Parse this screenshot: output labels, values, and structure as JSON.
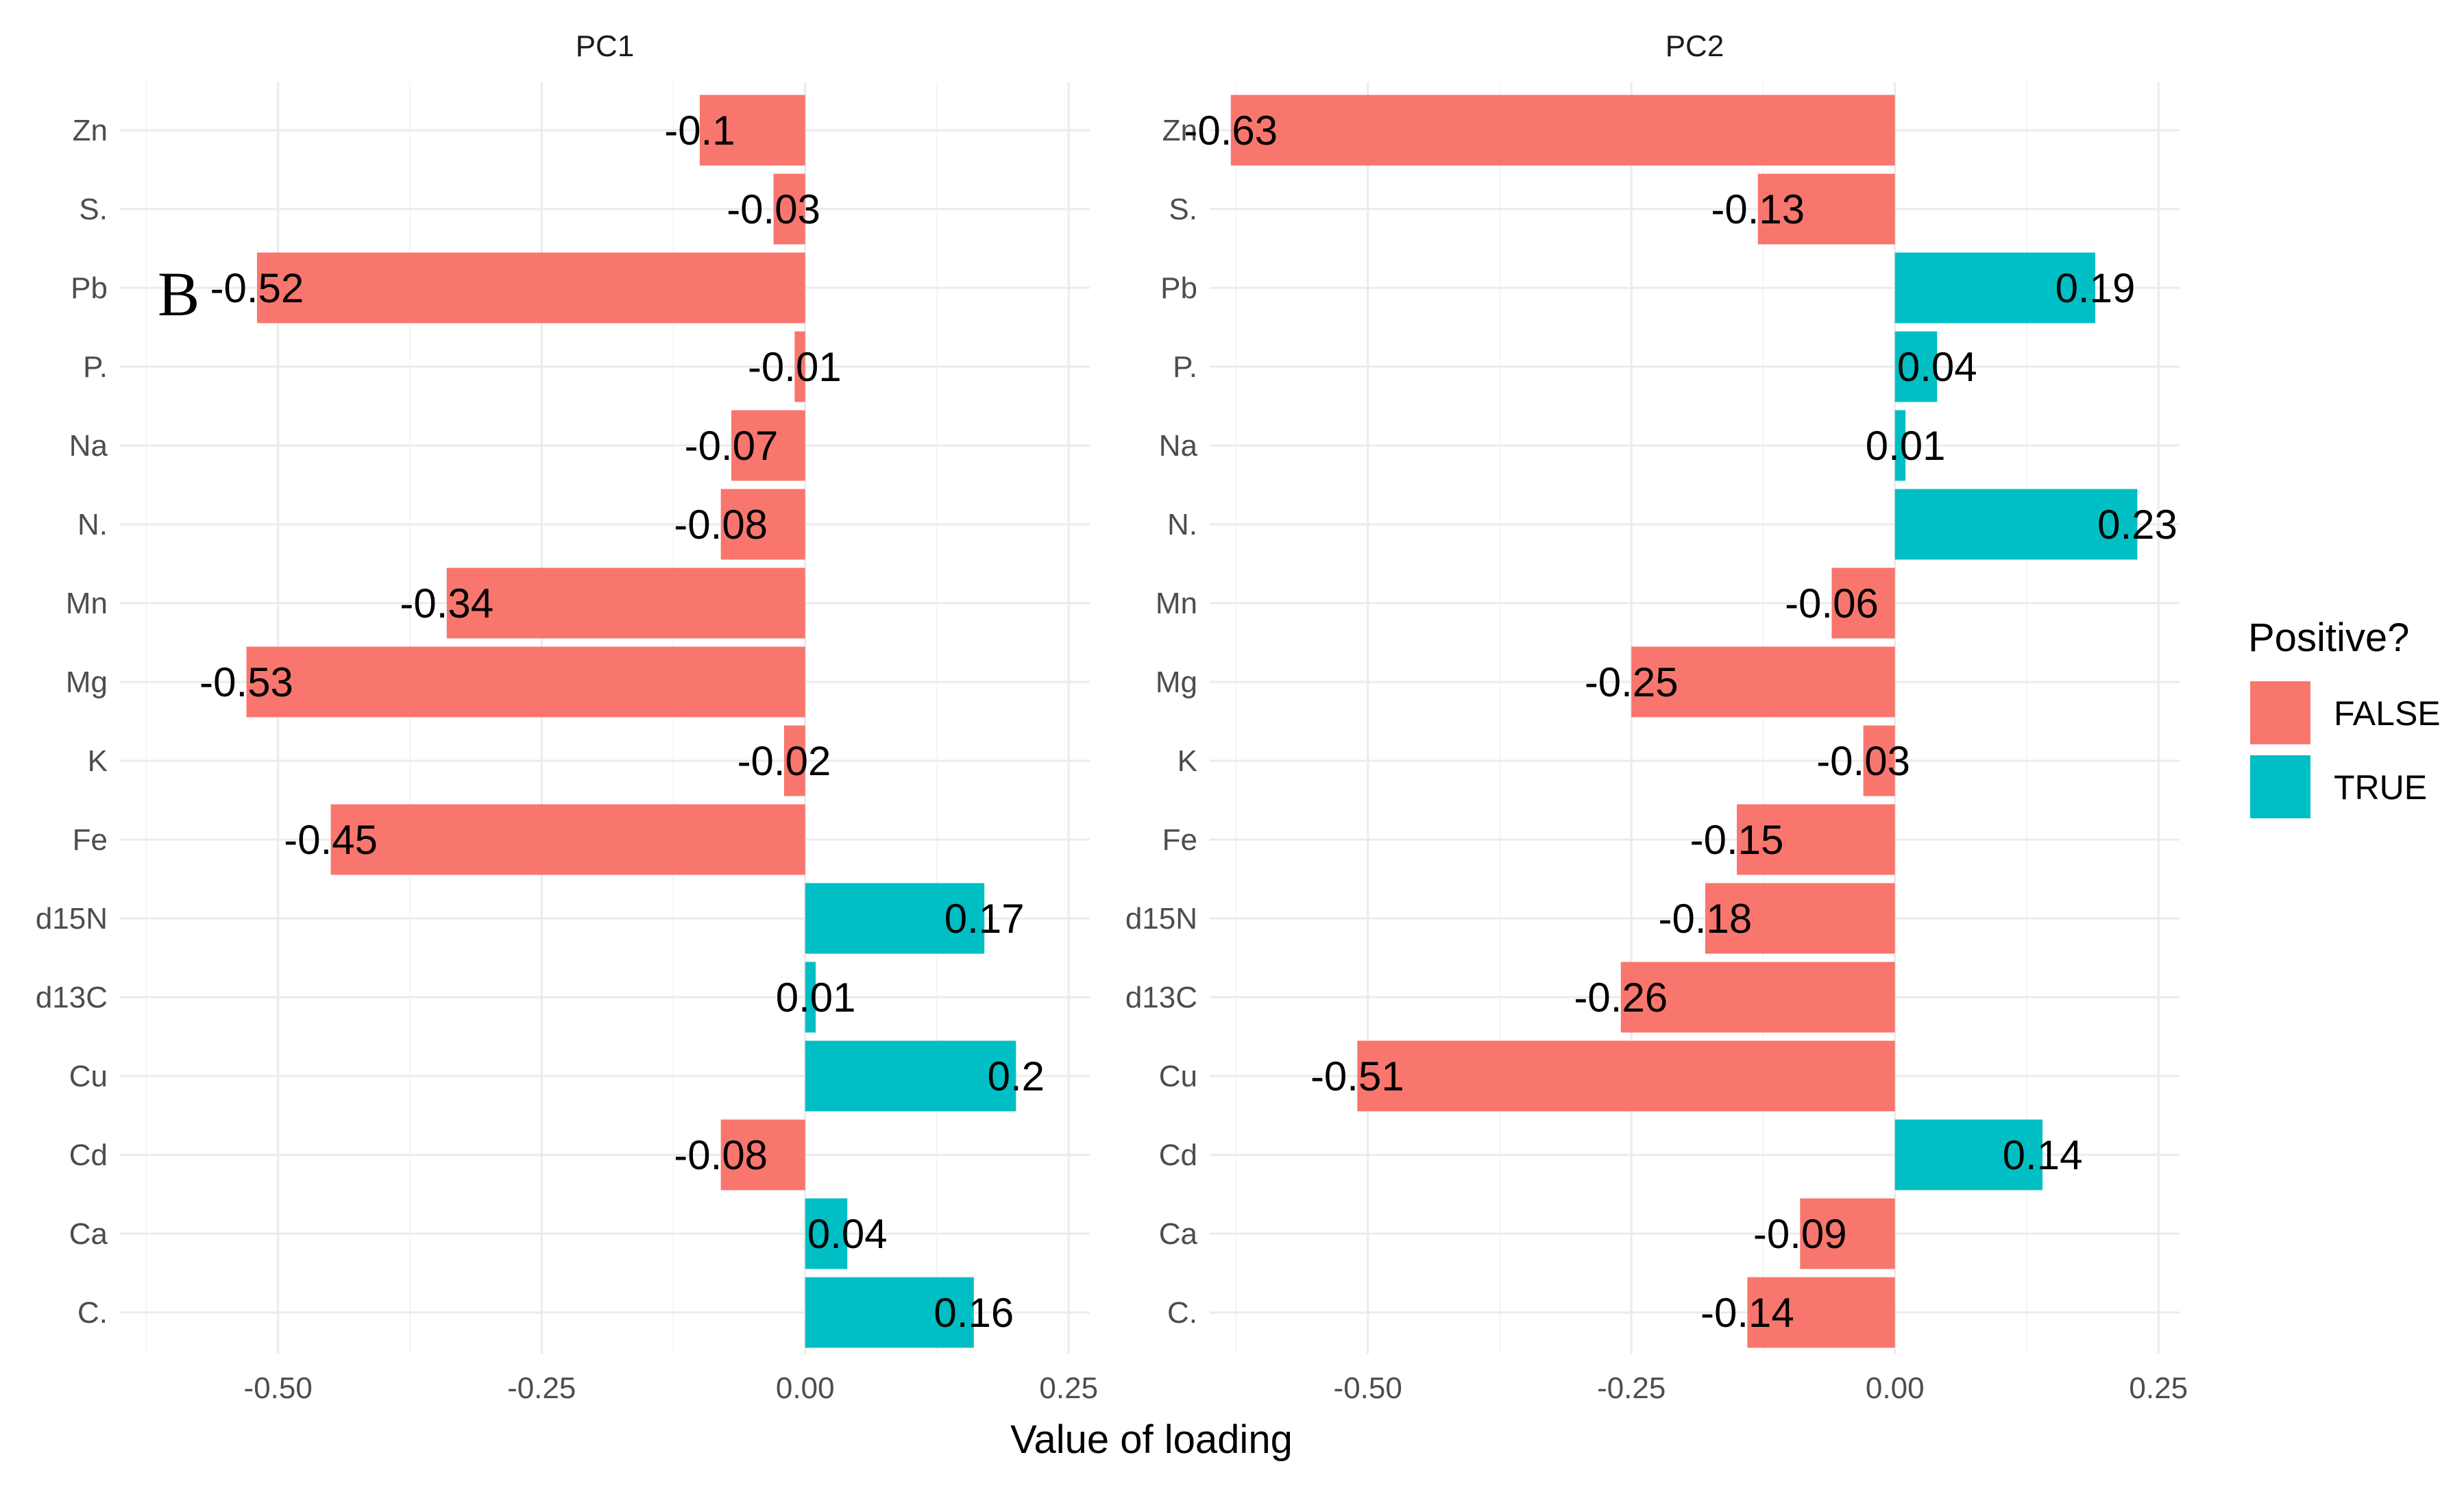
{
  "chart_data": {
    "type": "bar",
    "orientation": "horizontal",
    "xlabel": "Value of loading",
    "ylabel": "",
    "categories": [
      "Zn",
      "S.",
      "Pb",
      "P.",
      "Na",
      "N.",
      "Mn",
      "Mg",
      "K",
      "Fe",
      "d15N",
      "d13C",
      "Cu",
      "Cd",
      "Ca",
      "C."
    ],
    "xlim": [
      -0.65,
      0.27
    ],
    "xticks": [
      -0.5,
      -0.25,
      0.0,
      0.25
    ],
    "xtick_labels": [
      "-0.50",
      "-0.25",
      "0.00",
      "0.25"
    ],
    "grid": true,
    "panel_letter": "B",
    "legend": {
      "title": "Positive?",
      "position": "right",
      "entries": [
        {
          "label": "FALSE",
          "color": "#F8766D"
        },
        {
          "label": "TRUE",
          "color": "#00BFC4"
        }
      ]
    },
    "facets": [
      {
        "title": "PC1",
        "values": [
          -0.1,
          -0.03,
          -0.52,
          -0.01,
          -0.07,
          -0.08,
          -0.34,
          -0.53,
          -0.02,
          -0.45,
          0.17,
          0.01,
          0.2,
          -0.08,
          0.04,
          0.16
        ],
        "labels": [
          "-0.1",
          "-0.03",
          "-0.52",
          "-0.01",
          "-0.07",
          "-0.08",
          "-0.34",
          "-0.53",
          "-0.02",
          "-0.45",
          "0.17",
          "0.01",
          "0.2",
          "-0.08",
          "0.04",
          "0.16"
        ]
      },
      {
        "title": "PC2",
        "values": [
          -0.63,
          -0.13,
          0.19,
          0.04,
          0.01,
          0.23,
          -0.06,
          -0.25,
          -0.03,
          -0.15,
          -0.18,
          -0.26,
          -0.51,
          0.14,
          -0.09,
          -0.14
        ],
        "labels": [
          "-0.63",
          "-0.13",
          "0.19",
          "0.04",
          "0.01",
          "0.23",
          "-0.06",
          "-0.25",
          "-0.03",
          "-0.15",
          "-0.18",
          "-0.26",
          "-0.51",
          "0.14",
          "-0.09",
          "-0.14"
        ]
      }
    ]
  }
}
